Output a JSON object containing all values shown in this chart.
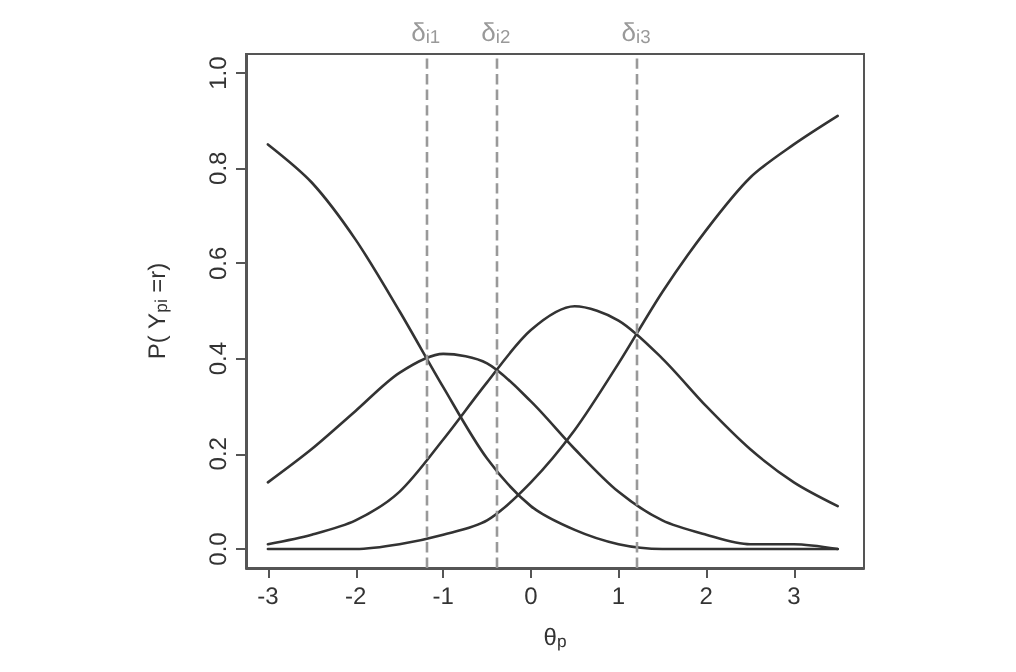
{
  "chart_data": {
    "type": "line",
    "xlabel": "θ$_{p}$",
    "ylabel": "P( Y$_{pi}$ =r)",
    "x": [
      -3,
      -2.5,
      -2,
      -1.5,
      -1,
      -0.5,
      0,
      0.5,
      1,
      1.5,
      2,
      2.5,
      3,
      3.5
    ],
    "series": [
      {
        "color": "#333333",
        "values": [
          0.85,
          0.77,
          0.65,
          0.5,
          0.34,
          0.19,
          0.09,
          0.04,
          0.01,
          0.0,
          0.0,
          0.0,
          0.0,
          0.0
        ]
      },
      {
        "color": "#333333",
        "values": [
          0.14,
          0.21,
          0.29,
          0.37,
          0.41,
          0.39,
          0.31,
          0.21,
          0.12,
          0.06,
          0.03,
          0.01,
          0.01,
          0.0
        ]
      },
      {
        "color": "#333333",
        "values": [
          0.01,
          0.03,
          0.06,
          0.12,
          0.23,
          0.35,
          0.46,
          0.51,
          0.48,
          0.4,
          0.3,
          0.21,
          0.14,
          0.09
        ]
      },
      {
        "color": "#333333",
        "values": [
          0.0,
          0.0,
          0.0,
          0.01,
          0.03,
          0.06,
          0.14,
          0.25,
          0.39,
          0.54,
          0.67,
          0.78,
          0.85,
          0.91
        ]
      }
    ],
    "xlim": [
      -3.25,
      3.8
    ],
    "xticks": [
      -3,
      -2,
      -1,
      0,
      1,
      2,
      3
    ],
    "ylim": [
      -0.04,
      1.04
    ],
    "yticks": [
      {
        "value": 0,
        "label": "0.0"
      },
      {
        "value": 0.2,
        "label": "0.2"
      },
      {
        "value": 0.4,
        "label": "0.4"
      },
      {
        "value": 0.6,
        "label": "0.6"
      },
      {
        "value": 0.8,
        "label": "0.8"
      },
      {
        "value": 1,
        "label": "1.0"
      }
    ],
    "ref_lines": [
      {
        "axis": "x",
        "value": -1.2,
        "label": "δ$_{i1}$",
        "color": "#999999",
        "line_style": "dashed"
      },
      {
        "axis": "x",
        "value": -0.4,
        "label": "δ$_{i2}$",
        "color": "#999999",
        "line_style": "dashed"
      },
      {
        "axis": "x",
        "value": 1.2,
        "label": "δ$_{i3}$",
        "color": "#999999",
        "line_style": "dashed"
      }
    ],
    "grid": false,
    "marker": "none",
    "line_style": "solid"
  }
}
